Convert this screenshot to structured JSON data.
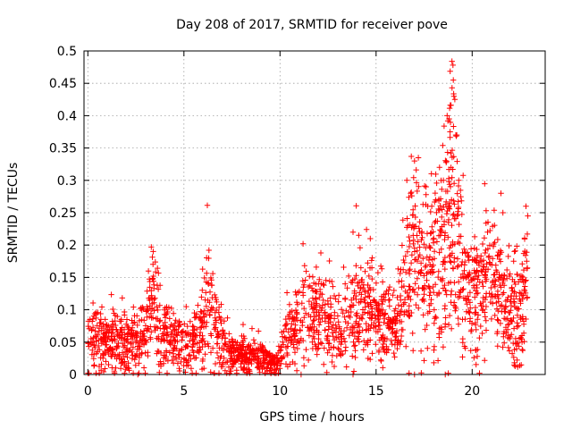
{
  "chart_data": {
    "type": "scatter",
    "title": "Day 208 of 2017, SRMTID for receiver pove",
    "xlabel": "GPS time / hours",
    "ylabel": "SRMTID / TECUs",
    "xlim": [
      -0.2,
      23.8
    ],
    "ylim": [
      0,
      0.5
    ],
    "x_ticks": [
      0,
      5,
      10,
      15,
      20
    ],
    "x_tick_labels": [
      "0",
      "5",
      "10",
      "15",
      "20"
    ],
    "y_ticks": [
      0,
      0.05,
      0.1,
      0.15,
      0.2,
      0.25,
      0.3,
      0.35,
      0.4,
      0.45,
      0.5
    ],
    "y_tick_labels": [
      "0",
      "0.05",
      "0.1",
      "0.15",
      "0.2",
      "0.25",
      "0.3",
      "0.35",
      "0.4",
      "0.45",
      "0.5"
    ],
    "grid": true,
    "marker": "+",
    "series": [
      {
        "name": "SRMTID",
        "color": "#ff0000",
        "profile": [
          [
            0.0,
            0.05,
            0.03
          ],
          [
            0.5,
            0.06,
            0.035
          ],
          [
            1.0,
            0.05,
            0.03
          ],
          [
            1.5,
            0.05,
            0.03
          ],
          [
            2.0,
            0.055,
            0.03
          ],
          [
            2.5,
            0.05,
            0.03
          ],
          [
            3.0,
            0.065,
            0.035
          ],
          [
            3.4,
            0.12,
            0.05
          ],
          [
            3.8,
            0.07,
            0.04
          ],
          [
            4.5,
            0.06,
            0.03
          ],
          [
            5.0,
            0.045,
            0.03
          ],
          [
            5.5,
            0.05,
            0.03
          ],
          [
            6.0,
            0.08,
            0.04
          ],
          [
            6.3,
            0.13,
            0.05
          ],
          [
            6.7,
            0.07,
            0.035
          ],
          [
            7.2,
            0.035,
            0.02
          ],
          [
            8.0,
            0.03,
            0.018
          ],
          [
            8.8,
            0.03,
            0.015
          ],
          [
            9.5,
            0.02,
            0.012
          ],
          [
            9.9,
            0.015,
            0.01
          ],
          [
            10.3,
            0.06,
            0.03
          ],
          [
            10.8,
            0.07,
            0.03
          ],
          [
            11.3,
            0.1,
            0.05
          ],
          [
            12.0,
            0.09,
            0.04
          ],
          [
            12.5,
            0.09,
            0.04
          ],
          [
            13.0,
            0.07,
            0.035
          ],
          [
            13.5,
            0.08,
            0.04
          ],
          [
            14.0,
            0.11,
            0.05
          ],
          [
            14.6,
            0.12,
            0.05
          ],
          [
            15.0,
            0.09,
            0.04
          ],
          [
            15.5,
            0.08,
            0.04
          ],
          [
            16.0,
            0.07,
            0.035
          ],
          [
            16.5,
            0.15,
            0.08
          ],
          [
            17.0,
            0.2,
            0.09
          ],
          [
            17.5,
            0.15,
            0.07
          ],
          [
            18.0,
            0.18,
            0.08
          ],
          [
            18.6,
            0.22,
            0.12
          ],
          [
            19.0,
            0.25,
            0.13
          ],
          [
            19.5,
            0.15,
            0.07
          ],
          [
            20.0,
            0.12,
            0.06
          ],
          [
            20.5,
            0.14,
            0.06
          ],
          [
            21.0,
            0.16,
            0.06
          ],
          [
            21.5,
            0.12,
            0.05
          ],
          [
            22.0,
            0.1,
            0.05
          ],
          [
            22.5,
            0.11,
            0.05
          ],
          [
            22.8,
            0.16,
            0.06
          ]
        ],
        "peaks": [
          [
            3.3,
            0.197
          ],
          [
            3.4,
            0.19
          ],
          [
            6.3,
            0.192
          ],
          [
            6.5,
            0.156
          ],
          [
            11.2,
            0.202
          ],
          [
            12.0,
            0.14
          ],
          [
            13.8,
            0.22
          ],
          [
            14.1,
            0.215
          ],
          [
            14.7,
            0.21
          ],
          [
            16.6,
            0.3
          ],
          [
            16.8,
            0.28
          ],
          [
            17.0,
            0.33
          ],
          [
            17.2,
            0.335
          ],
          [
            17.6,
            0.29
          ],
          [
            17.9,
            0.26
          ],
          [
            18.3,
            0.32
          ],
          [
            18.5,
            0.3
          ],
          [
            18.7,
            0.4
          ],
          [
            18.8,
            0.395
          ],
          [
            18.85,
            0.375
          ],
          [
            18.95,
            0.484
          ],
          [
            19.0,
            0.478
          ],
          [
            19.02,
            0.455
          ],
          [
            19.05,
            0.43
          ],
          [
            19.1,
            0.425
          ],
          [
            19.15,
            0.37
          ],
          [
            19.2,
            0.37
          ],
          [
            19.3,
            0.3
          ],
          [
            20.8,
            0.22
          ],
          [
            21.5,
            0.28
          ],
          [
            21.6,
            0.25
          ],
          [
            22.2,
            0.19
          ],
          [
            22.8,
            0.26
          ],
          [
            22.9,
            0.245
          ]
        ],
        "point_count": 2300,
        "x_range": [
          0.0,
          22.9
        ]
      }
    ]
  }
}
